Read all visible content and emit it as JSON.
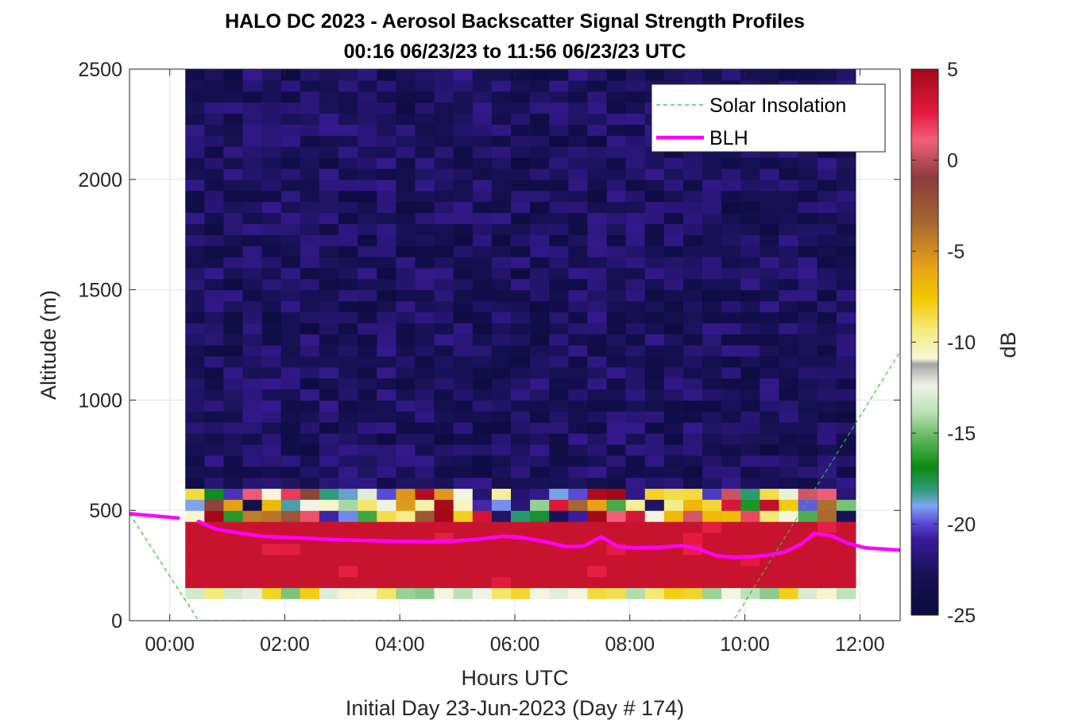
{
  "chart_data": {
    "type": "heatmap",
    "title": "HALO DC 2023 - Aerosol Backscatter Signal Strength Profiles",
    "subtitle": "00:16 06/23/23 to 11:56 06/23/23  UTC",
    "xlabel": "Hours UTC",
    "xlabel2": "Initial Day 23-Jun-2023 (Day # 174)",
    "ylabel": "Altitude (m)",
    "colorbar_label": "dB",
    "xlim": [
      -0.7,
      12.7
    ],
    "ylim": [
      0,
      2500
    ],
    "x_tick_values": [
      0,
      2,
      4,
      6,
      8,
      10,
      12
    ],
    "x_tick_labels": [
      "00:00",
      "02:00",
      "04:00",
      "06:00",
      "08:00",
      "10:00",
      "12:00"
    ],
    "y_ticks": [
      0,
      500,
      1000,
      1500,
      2000,
      2500
    ],
    "clim": [
      -25,
      5
    ],
    "colorbar_ticks": [
      5,
      0,
      -5,
      -10,
      -15,
      -20,
      -25
    ],
    "grid": true,
    "legend_position": "top-right",
    "legend": [
      {
        "name": "Solar Insolation",
        "style": "dashed",
        "color": "#22cc22"
      },
      {
        "name": "BLH",
        "style": "solid",
        "color": "#ff00ff"
      }
    ],
    "heatmap": {
      "x_start": 0.27,
      "time_step_hours": 0.333,
      "columns": 35,
      "altitude_bin_m": 50,
      "altitude_start_m": 100,
      "layer_values_db": [
        {
          "range_m": [
            100,
            150
          ],
          "db": -12
        },
        {
          "range_m": [
            150,
            450
          ],
          "db": 3.5
        },
        {
          "range_m": [
            450,
            600
          ],
          "db": -14
        },
        {
          "range_m": [
            600,
            2500
          ],
          "db": -23
        }
      ]
    },
    "blh": {
      "x": [
        -0.7,
        0.15,
        null,
        0.5,
        0.8,
        1.2,
        1.6,
        2.0,
        2.5,
        3.0,
        3.5,
        4.0,
        4.5,
        5.0,
        5.4,
        5.8,
        6.1,
        6.5,
        6.9,
        7.2,
        7.5,
        7.8,
        8.1,
        8.5,
        8.9,
        9.2,
        9.5,
        9.8,
        10.1,
        10.4,
        10.7,
        11.0,
        11.2,
        11.5,
        11.8,
        12.1,
        12.7
      ],
      "y": [
        485,
        465,
        null,
        450,
        415,
        398,
        383,
        378,
        372,
        366,
        363,
        360,
        358,
        362,
        370,
        383,
        378,
        360,
        335,
        338,
        380,
        335,
        330,
        332,
        340,
        325,
        295,
        288,
        290,
        297,
        312,
        350,
        395,
        385,
        350,
        330,
        320
      ]
    },
    "solar_insolation": {
      "x": [
        -0.7,
        0.5,
        9.8,
        12.7
      ],
      "y": [
        485,
        0,
        0,
        1220
      ]
    }
  }
}
